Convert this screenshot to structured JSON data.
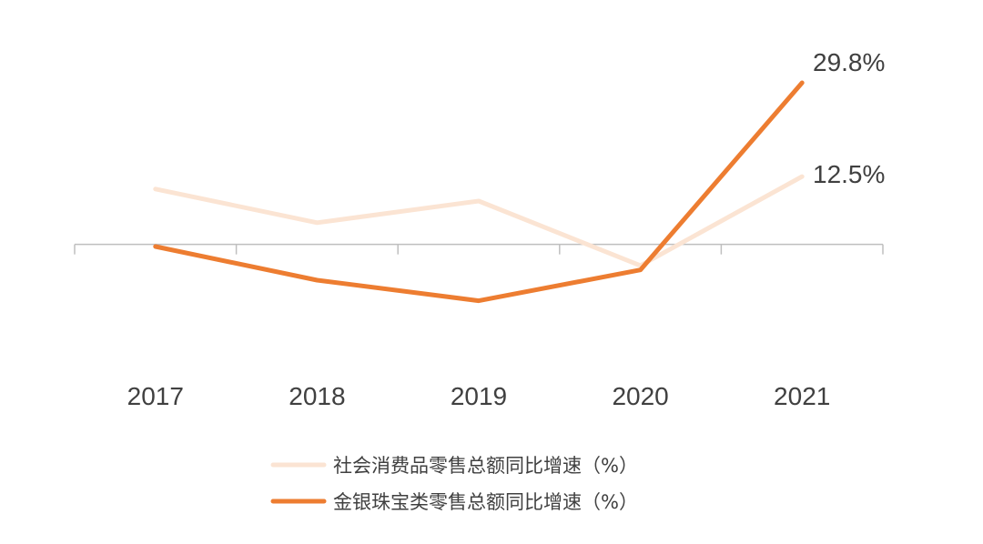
{
  "chart_data": {
    "type": "line",
    "title": "",
    "xlabel": "",
    "ylabel": "",
    "categories": [
      "2017",
      "2018",
      "2019",
      "2020",
      "2021"
    ],
    "ylim": [
      -16,
      34
    ],
    "grid": false,
    "legend_position": "bottom",
    "series": [
      {
        "name": "社会消费品零售总额同比增速（%）",
        "values": [
          10.2,
          4.0,
          8.0,
          -3.9,
          12.5
        ],
        "color": "#fbe4d3",
        "end_label": ""
      },
      {
        "name": "金银珠宝类零售总额同比增速（%）",
        "values": [
          -0.4,
          -6.6,
          -10.4,
          -4.7,
          29.8
        ],
        "color": "#ed7d31",
        "end_label": "29.8%"
      }
    ],
    "data_labels": [
      "29.8%",
      "12.5%"
    ]
  }
}
